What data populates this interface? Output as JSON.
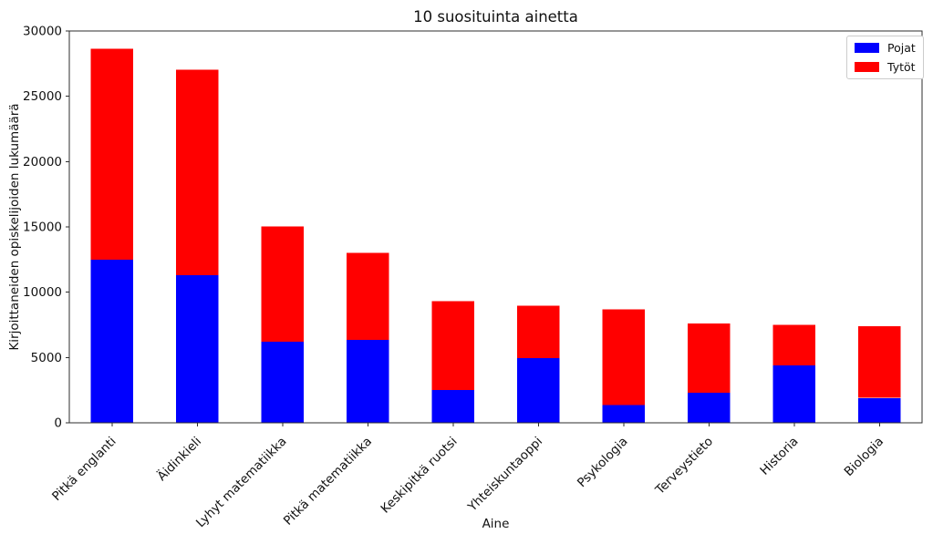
{
  "figure": {
    "background": "#ffffff"
  },
  "chart_data": {
    "type": "bar",
    "stacked": true,
    "title": "10 suosituinta ainetta",
    "xlabel": "Aine",
    "ylabel": "Kirjoittaneiden opiskelijoiden lukumäärä",
    "categories": [
      "Pitkä englanti",
      "Äidinkieli",
      "Lyhyt matematiikka",
      "Pitkä matematiikka",
      "Keskipitkä ruotsi",
      "Yhteiskuntaoppi",
      "Psykologia",
      "Terveystieto",
      "Historia",
      "Biologia"
    ],
    "series": [
      {
        "name": "Pojat",
        "color": "#0000ff",
        "values": [
          12500,
          11300,
          6200,
          6350,
          2500,
          4950,
          1350,
          2300,
          4400,
          1900
        ]
      },
      {
        "name": "Tytöt",
        "color": "#ff0000",
        "values": [
          16150,
          15750,
          8850,
          6650,
          6800,
          4000,
          7350,
          5300,
          3100,
          5500
        ]
      }
    ],
    "stack_totals": [
      28650,
      27050,
      15050,
      13000,
      9300,
      8950,
      8700,
      7600,
      7500,
      7400
    ],
    "ylim": [
      0,
      30000
    ],
    "yticks": [
      0,
      5000,
      10000,
      15000,
      20000,
      25000,
      30000
    ],
    "x_tick_rotation": 45,
    "grid": false,
    "legend_position": "upper right",
    "axis_color": "#2e2e2e",
    "bar_width_fraction": 0.5
  }
}
